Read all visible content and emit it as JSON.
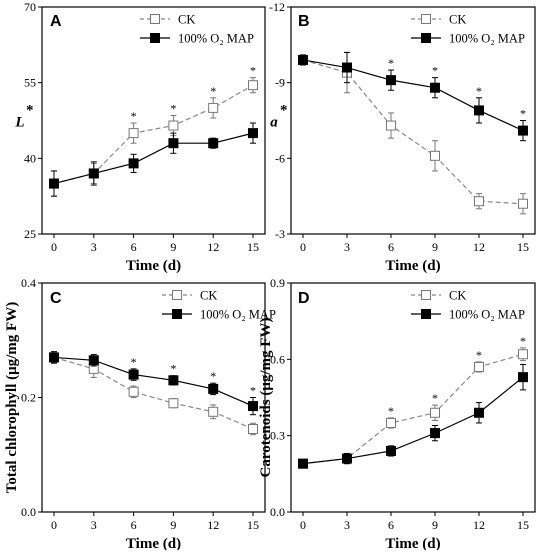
{
  "chart_data": [
    {
      "panel": "A",
      "type": "line",
      "title": "",
      "xlabel": "Time (d)",
      "ylabel": "L*",
      "ylabel_main": "L",
      "ylabel_sup": "*",
      "x": [
        0,
        3,
        6,
        9,
        12,
        15
      ],
      "x_ticks": [
        "0",
        "3",
        "6",
        "9",
        "12",
        "15"
      ],
      "ylim": [
        25,
        70
      ],
      "y_inverted": false,
      "y_ticks": [
        "25",
        "40",
        "55",
        "70"
      ],
      "legend": "top-left",
      "grid": false,
      "significance": [
        "",
        "",
        "*",
        "*",
        "*",
        "*"
      ],
      "series": [
        {
          "name": "CK",
          "style": "dashed-open-square",
          "values": [
            35,
            37,
            45,
            46.5,
            50,
            54.5
          ],
          "errors": [
            2.5,
            2,
            2,
            2,
            2,
            1.5
          ]
        },
        {
          "name": "100% O₂ MAP",
          "style": "solid-filled-square",
          "values": [
            35,
            37,
            39,
            43,
            43,
            45
          ],
          "errors": [
            2.5,
            2.3,
            1.8,
            2,
            1,
            2
          ]
        }
      ]
    },
    {
      "panel": "B",
      "type": "line",
      "title": "",
      "xlabel": "Time (d)",
      "ylabel": "a*",
      "ylabel_main": "a",
      "ylabel_sup": "*",
      "x": [
        0,
        3,
        6,
        9,
        12,
        15
      ],
      "x_ticks": [
        "0",
        "3",
        "6",
        "9",
        "12",
        "15"
      ],
      "ylim": [
        -3,
        -12
      ],
      "y_inverted": true,
      "y_ticks": [
        "-3",
        "-6",
        "-9",
        "-12"
      ],
      "legend": "top-right",
      "grid": false,
      "significance": [
        "",
        "",
        "*",
        "*",
        "*",
        "*"
      ],
      "series": [
        {
          "name": "CK",
          "style": "dashed-open-square",
          "values": [
            -9.9,
            -9.4,
            -7.3,
            -6.1,
            -4.3,
            -4.2
          ],
          "errors": [
            0.2,
            0.8,
            0.5,
            0.6,
            0.3,
            0.4
          ]
        },
        {
          "name": "100% O₂ MAP",
          "style": "solid-filled-square",
          "values": [
            -9.9,
            -9.6,
            -9.1,
            -8.8,
            -7.9,
            -7.1
          ],
          "errors": [
            0.2,
            0.6,
            0.4,
            0.4,
            0.5,
            0.4
          ]
        }
      ]
    },
    {
      "panel": "C",
      "type": "line",
      "title": "",
      "xlabel": "Time (d)",
      "ylabel": "Total chlorophyll (μg/mg FW)",
      "x": [
        0,
        3,
        6,
        9,
        12,
        15
      ],
      "x_ticks": [
        "0",
        "3",
        "6",
        "9",
        "12",
        "15"
      ],
      "ylim": [
        0,
        0.4
      ],
      "y_inverted": false,
      "y_ticks": [
        "0.0",
        "0.2",
        "0.4"
      ],
      "legend": "top-right",
      "grid": false,
      "significance": [
        "",
        "",
        "*",
        "*",
        "*",
        "*"
      ],
      "series": [
        {
          "name": "CK",
          "style": "dashed-open-square",
          "values": [
            0.27,
            0.25,
            0.21,
            0.19,
            0.175,
            0.145
          ],
          "errors": [
            0.01,
            0.015,
            0.01,
            0.008,
            0.012,
            0.01
          ]
        },
        {
          "name": "100% O₂ MAP",
          "style": "solid-filled-square",
          "values": [
            0.27,
            0.265,
            0.24,
            0.23,
            0.215,
            0.185
          ],
          "errors": [
            0.01,
            0.01,
            0.01,
            0.008,
            0.01,
            0.015
          ]
        }
      ]
    },
    {
      "panel": "D",
      "type": "line",
      "title": "",
      "xlabel": "Time (d)",
      "ylabel": "Carotenoids (μg/mg FW)",
      "x": [
        0,
        3,
        6,
        9,
        12,
        15
      ],
      "x_ticks": [
        "0",
        "3",
        "6",
        "9",
        "12",
        "15"
      ],
      "ylim": [
        0,
        0.9
      ],
      "y_inverted": false,
      "y_ticks": [
        "0.0",
        "0.3",
        "0.6",
        "0.9"
      ],
      "legend": "top-right",
      "grid": false,
      "significance": [
        "",
        "",
        "*",
        "*",
        "*",
        "*"
      ],
      "series": [
        {
          "name": "CK",
          "style": "dashed-open-square",
          "values": [
            0.19,
            0.21,
            0.35,
            0.39,
            0.57,
            0.62
          ],
          "errors": [
            0.015,
            0.02,
            0.02,
            0.03,
            0.02,
            0.025
          ]
        },
        {
          "name": "100% O₂ MAP",
          "style": "solid-filled-square",
          "values": [
            0.19,
            0.21,
            0.24,
            0.31,
            0.39,
            0.53
          ],
          "errors": [
            0.015,
            0.02,
            0.02,
            0.03,
            0.04,
            0.05
          ]
        }
      ]
    }
  ]
}
